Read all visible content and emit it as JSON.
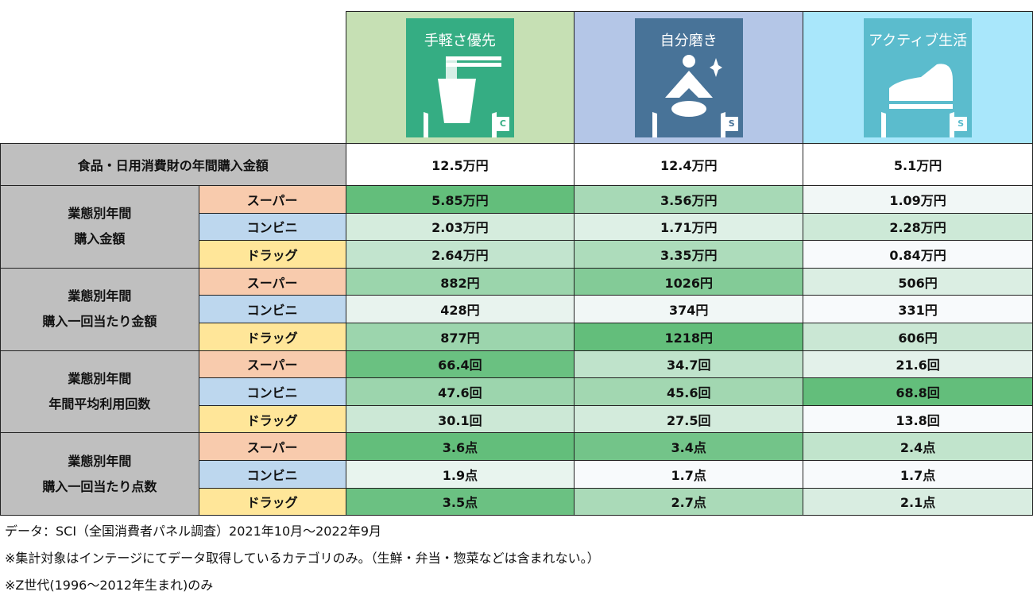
{
  "segments": [
    {
      "name": "手軽さ優先",
      "badge": "C",
      "bg": "#c6e0b4",
      "icon_bg": "#35ad83",
      "icon": "noodle-cup-icon"
    },
    {
      "name": "自分磨き",
      "badge": "S",
      "bg": "#b4c6e7",
      "icon_bg": "#487398",
      "icon": "meditation-icon"
    },
    {
      "name": "アクティブ生活",
      "badge": "S",
      "bg": "#a9e7fb",
      "icon_bg": "#5bbccd",
      "icon": "sneaker-icon"
    }
  ],
  "total": {
    "label": "食品・日用消費財の年間購入金額",
    "values": [
      "12.5万円",
      "12.4万円",
      "5.1万円"
    ]
  },
  "channels": [
    "スーパー",
    "コンビニ",
    "ドラッグ"
  ],
  "groups": [
    {
      "label1": "業態別年間",
      "label2": "購入金額",
      "rows": [
        [
          "5.85万円",
          "3.56万円",
          "1.09万円"
        ],
        [
          "2.03万円",
          "1.71万円",
          "2.28万円"
        ],
        [
          "2.64万円",
          "3.35万円",
          "0.84万円"
        ]
      ]
    },
    {
      "label1": "業態別年間",
      "label2": "購入一回当たり金額",
      "rows": [
        [
          "882円",
          "1026円",
          "506円"
        ],
        [
          "428円",
          "374円",
          "331円"
        ],
        [
          "877円",
          "1218円",
          "606円"
        ]
      ]
    },
    {
      "label1": "業態別年間",
      "label2": "年間平均利用回数",
      "rows": [
        [
          "66.4回",
          "34.7回",
          "21.6回"
        ],
        [
          "47.6回",
          "45.6回",
          "68.8回"
        ],
        [
          "30.1回",
          "27.5回",
          "13.8回"
        ]
      ]
    },
    {
      "label1": "業態別年間",
      "label2": "購入一回当たり点数",
      "rows": [
        [
          "3.6点",
          "3.4点",
          "2.4点"
        ],
        [
          "1.9点",
          "1.7点",
          "1.7点"
        ],
        [
          "3.5点",
          "2.7点",
          "2.1点"
        ]
      ]
    }
  ],
  "notes": [
    "データ：SCI（全国消費者パネル調査）2021年10月～2022年9月",
    "※集計対象はインテージにてデータ取得しているカテゴリのみ。（生鮮・弁当・惣菜などは含まれない。）",
    "※Z世代(1996～2012年生まれ)のみ"
  ]
}
